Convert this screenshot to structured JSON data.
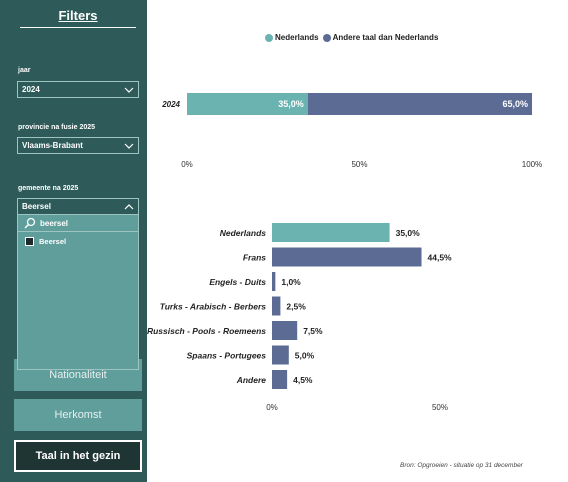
{
  "sidebar": {
    "title": "Filters",
    "filters": [
      {
        "label": "jaar",
        "value": "2024"
      },
      {
        "label": "provincie na fusie 2025",
        "value": "Vlaams-Brabant"
      },
      {
        "label": "gemeente na 2025",
        "value": "Beersel"
      }
    ],
    "dropdown": {
      "search": "beersel",
      "option": "Beersel"
    },
    "nav": [
      "Nationaliteit",
      "Herkomst",
      "Taal in het gezin"
    ]
  },
  "colors": {
    "teal": "#6ab3b1",
    "slate": "#5b6b94",
    "sidebar": "#2e5b59"
  },
  "legend": [
    "Nederlands",
    "Andere taal dan Nederlands"
  ],
  "chart_data": [
    {
      "type": "bar",
      "orientation": "horizontal",
      "stacked": true,
      "categories": [
        "2024"
      ],
      "series": [
        {
          "name": "Nederlands",
          "values": [
            35.0
          ],
          "labels": [
            "35,0%"
          ]
        },
        {
          "name": "Andere taal dan Nederlands",
          "values": [
            65.0
          ],
          "labels": [
            "65,0%"
          ]
        }
      ],
      "xlim": [
        0,
        100
      ],
      "xticks": [
        "0%",
        "50%",
        "100%"
      ],
      "legend_position": "top"
    },
    {
      "type": "bar",
      "orientation": "horizontal",
      "categories": [
        "Nederlands",
        "Frans",
        "Engels - Duits",
        "Turks - Arabisch - Berbers",
        "Russisch - Pools - Roemeens",
        "Spaans - Portugees",
        "Andere"
      ],
      "values": [
        35.0,
        44.5,
        1.0,
        2.5,
        7.5,
        5.0,
        4.5
      ],
      "labels": [
        "35,0%",
        "44,5%",
        "1,0%",
        "2,5%",
        "7,5%",
        "5,0%",
        "4,5%"
      ],
      "xlim": [
        0,
        60
      ],
      "xticks": [
        "0%",
        "50%"
      ]
    }
  ],
  "source": "Bron: Opgroeien - situatie op 31 december"
}
